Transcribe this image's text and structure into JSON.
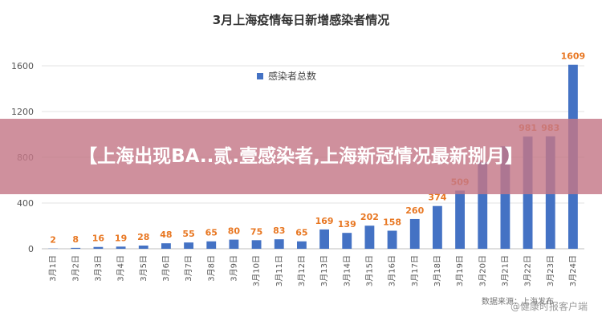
{
  "chart_data": {
    "type": "bar",
    "title": "3月上海疫情每日新增感染者情况",
    "legend": "感染者总数",
    "legend_position": "top-center",
    "xlabel": "",
    "ylabel": "",
    "ylim": [
      0,
      1600
    ],
    "yticks": [
      0,
      400,
      800,
      1200,
      1600
    ],
    "grid": true,
    "bar_color": "#4472C4",
    "label_color": "#E87722",
    "categories": [
      "3月1日",
      "3月2日",
      "3月3日",
      "3月4日",
      "3月5日",
      "3月6日",
      "3月7日",
      "3月8日",
      "3月9日",
      "3月10日",
      "3月11日",
      "3月12日",
      "3月13日",
      "3月14日",
      "3月15日",
      "3月16日",
      "3月17日",
      "3月18日",
      "3月19日",
      "3月20日",
      "3月21日",
      "3月22日",
      "3月23日",
      "3月24日"
    ],
    "values": [
      2,
      8,
      16,
      19,
      28,
      48,
      55,
      65,
      80,
      75,
      83,
      65,
      169,
      139,
      202,
      158,
      260,
      374,
      509,
      758,
      896,
      981,
      983,
      1609
    ],
    "data_labels": [
      "2",
      "8",
      "16",
      "19",
      "28",
      "48",
      "55",
      "65",
      "80",
      "75",
      "83",
      "65",
      "169",
      "139",
      "202",
      "158",
      "260",
      "374",
      "509",
      "",
      "",
      "981",
      "983",
      "1609"
    ]
  },
  "banner": {
    "text": "【上海出现BA.️.贰.壹感染者,上海新冠情况最新捌月】"
  },
  "watermark": "@健康时报客户端",
  "source_note": "数据来源：上海发布"
}
